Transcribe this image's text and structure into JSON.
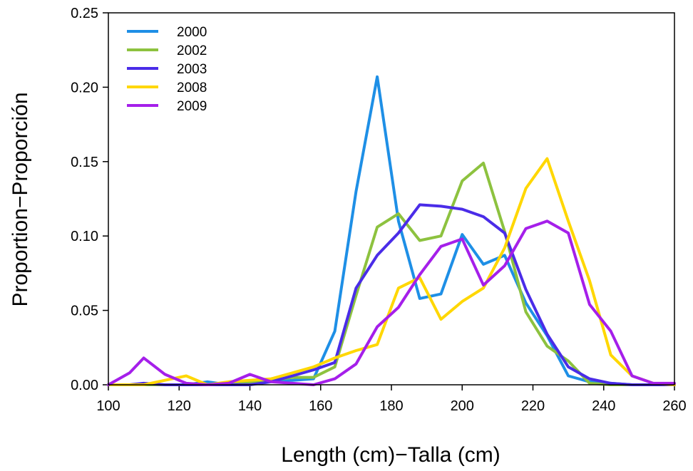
{
  "chart_data": {
    "type": "line",
    "title": "",
    "xlabel": "Length (cm)−Talla (cm)",
    "ylabel": "Proportion−Proporción",
    "xlim": [
      100,
      260
    ],
    "ylim": [
      0,
      0.25
    ],
    "xticks": [
      "100",
      "120",
      "140",
      "160",
      "180",
      "200",
      "220",
      "240",
      "260"
    ],
    "yticks": [
      "0.00",
      "0.05",
      "0.10",
      "0.15",
      "0.20",
      "0.25"
    ],
    "grid": false,
    "legend_position": "top-left",
    "x": [
      100,
      106,
      110,
      116,
      122,
      128,
      134,
      140,
      146,
      152,
      158,
      164,
      170,
      176,
      182,
      188,
      194,
      200,
      206,
      212,
      218,
      224,
      230,
      236,
      242,
      248,
      254,
      260
    ],
    "series": [
      {
        "name": "2000",
        "color": "#1E8FE6",
        "values": [
          0.0,
          0.0,
          0.0,
          0.0,
          0.0,
          0.002,
          0.0,
          0.002,
          0.003,
          0.003,
          0.004,
          0.036,
          0.13,
          0.207,
          0.11,
          0.058,
          0.061,
          0.101,
          0.081,
          0.087,
          0.055,
          0.033,
          0.006,
          0.002,
          0.001,
          0.0,
          0.0,
          0.0
        ]
      },
      {
        "name": "2002",
        "color": "#8DC23F",
        "values": [
          0.0,
          0.0,
          0.0,
          0.0,
          0.0,
          0.0,
          0.0,
          0.001,
          0.003,
          0.005,
          0.005,
          0.012,
          0.06,
          0.106,
          0.115,
          0.097,
          0.1,
          0.137,
          0.149,
          0.103,
          0.049,
          0.026,
          0.016,
          0.001,
          0.0,
          0.0,
          0.0,
          0.0
        ]
      },
      {
        "name": "2003",
        "color": "#4A2CE8",
        "values": [
          0.0,
          0.0,
          0.001,
          0.0,
          0.0,
          0.0,
          0.0,
          0.0,
          0.002,
          0.006,
          0.01,
          0.015,
          0.065,
          0.087,
          0.102,
          0.121,
          0.12,
          0.118,
          0.113,
          0.102,
          0.064,
          0.034,
          0.012,
          0.004,
          0.001,
          0.0,
          0.0,
          0.0
        ]
      },
      {
        "name": "2008",
        "color": "#FFD700",
        "values": [
          0.0,
          0.0,
          0.0,
          0.003,
          0.006,
          0.0,
          0.002,
          0.003,
          0.004,
          0.008,
          0.012,
          0.018,
          0.023,
          0.027,
          0.065,
          0.072,
          0.044,
          0.056,
          0.065,
          0.092,
          0.132,
          0.152,
          0.11,
          0.07,
          0.02,
          0.006,
          0.001,
          0.0
        ]
      },
      {
        "name": "2009",
        "color": "#A51FEA",
        "values": [
          0.0,
          0.008,
          0.018,
          0.007,
          0.001,
          0.0,
          0.001,
          0.007,
          0.002,
          0.001,
          0.0,
          0.004,
          0.014,
          0.039,
          0.052,
          0.074,
          0.093,
          0.098,
          0.067,
          0.08,
          0.105,
          0.11,
          0.102,
          0.054,
          0.036,
          0.006,
          0.001,
          0.001
        ]
      }
    ]
  }
}
